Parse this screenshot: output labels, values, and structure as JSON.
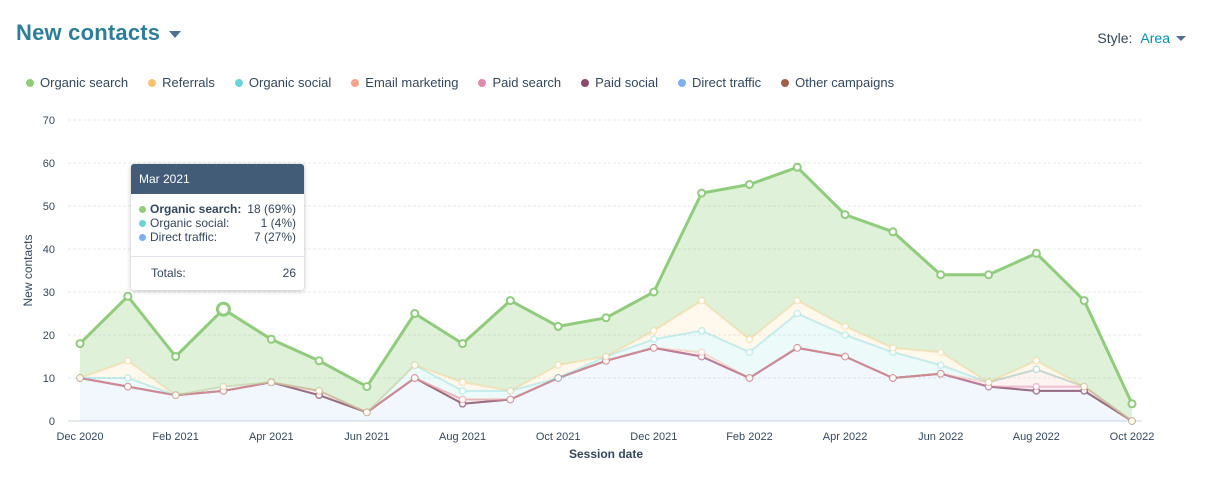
{
  "header": {
    "title": "New contacts",
    "style_label": "Style:",
    "style_value": "Area"
  },
  "colors": {
    "organic_search": "#8fcc7b",
    "referrals": "#f5c26b",
    "organic_social": "#6cd4d9",
    "email_marketing": "#f2a48a",
    "paid_search": "#e18ab0",
    "paid_social": "#8b4a6b",
    "direct_traffic": "#7eb0f0",
    "other_campaigns": "#a0614b"
  },
  "tooltip": {
    "title": "Mar 2021",
    "rows": [
      {
        "name": "Organic search:",
        "value": "18 (69%)",
        "color": "#8fcc7b",
        "bold": true
      },
      {
        "name": "Organic social:",
        "value": "1 (4%)",
        "color": "#6cd4d9",
        "bold": false
      },
      {
        "name": "Direct traffic:",
        "value": "7 (27%)",
        "color": "#7eb0f0",
        "bold": false
      }
    ],
    "totals_label": "Totals:",
    "totals_value": "26"
  },
  "chart_data": {
    "type": "area",
    "stacked": true,
    "title": "New contacts",
    "xlabel": "Session date",
    "ylabel": "New contacts",
    "ylim": [
      0,
      70
    ],
    "yticks": [
      0,
      10,
      20,
      30,
      40,
      50,
      60,
      70
    ],
    "grid": true,
    "legend": "top-left",
    "x": [
      "Dec 2020",
      "Jan 2021",
      "Feb 2021",
      "Mar 2021",
      "Apr 2021",
      "May 2021",
      "Jun 2021",
      "Jul 2021",
      "Aug 2021",
      "Sep 2021",
      "Oct 2021",
      "Nov 2021",
      "Dec 2021",
      "Jan 2022",
      "Feb 2022",
      "Mar 2022",
      "Apr 2022",
      "May 2022",
      "Jun 2022",
      "Jul 2022",
      "Aug 2022",
      "Sep 2022",
      "Oct 2022"
    ],
    "xtick_labels": [
      "Dec 2020",
      "Feb 2021",
      "Apr 2021",
      "Jun 2021",
      "Aug 2021",
      "Oct 2021",
      "Dec 2021",
      "Feb 2022",
      "Apr 2022",
      "Jun 2022",
      "Aug 2022",
      "Oct 2022"
    ],
    "series": [
      {
        "name": "Direct traffic",
        "key": "direct_traffic",
        "values": [
          10,
          8,
          6,
          7,
          9,
          6,
          2,
          10,
          4,
          5,
          10,
          14,
          17,
          15,
          10,
          17,
          15,
          10,
          11,
          8,
          7,
          7,
          0
        ]
      },
      {
        "name": "Other campaigns",
        "key": "other_campaigns",
        "values": [
          0,
          0,
          0,
          0,
          0,
          0,
          0,
          0,
          0,
          0,
          0,
          0,
          0,
          0,
          0,
          0,
          0,
          0,
          0,
          0,
          0,
          0,
          0
        ]
      },
      {
        "name": "Paid social",
        "key": "paid_social",
        "values": [
          0,
          0,
          0,
          0,
          0,
          0,
          0,
          0,
          0,
          0,
          0,
          0,
          0,
          0,
          0,
          0,
          0,
          0,
          0,
          0,
          0,
          0,
          0
        ]
      },
      {
        "name": "Paid search",
        "key": "paid_search",
        "values": [
          0,
          0,
          0,
          0,
          0,
          1,
          0,
          0,
          1,
          0,
          0,
          0,
          0,
          0,
          0,
          0,
          0,
          0,
          0,
          0,
          1,
          1,
          0
        ]
      },
      {
        "name": "Email marketing",
        "key": "email_marketing",
        "values": [
          0,
          0,
          0,
          0,
          0,
          0,
          0,
          0,
          0,
          0,
          0,
          0,
          0,
          1,
          0,
          0,
          0,
          0,
          0,
          1,
          4,
          0,
          0
        ]
      },
      {
        "name": "Organic social",
        "key": "organic_social",
        "values": [
          0,
          2,
          0,
          1,
          0,
          0,
          0,
          3,
          2,
          2,
          0,
          1,
          2,
          5,
          6,
          8,
          5,
          6,
          2,
          0,
          0,
          0,
          0
        ]
      },
      {
        "name": "Referrals",
        "key": "referrals",
        "values": [
          0,
          4,
          0,
          0,
          0,
          0,
          0,
          0,
          2,
          0,
          3,
          0,
          2,
          7,
          3,
          3,
          2,
          1,
          3,
          0,
          2,
          0,
          0
        ]
      },
      {
        "name": "Organic search",
        "key": "organic_search",
        "values": [
          8,
          15,
          9,
          18,
          10,
          7,
          6,
          12,
          9,
          21,
          9,
          9,
          9,
          25,
          36,
          31,
          26,
          27,
          18,
          25,
          25,
          20,
          4
        ]
      }
    ]
  },
  "legend_items": [
    {
      "label": "Organic search",
      "key": "organic_search"
    },
    {
      "label": "Referrals",
      "key": "referrals"
    },
    {
      "label": "Organic social",
      "key": "organic_social"
    },
    {
      "label": "Email marketing",
      "key": "email_marketing"
    },
    {
      "label": "Paid search",
      "key": "paid_search"
    },
    {
      "label": "Paid social",
      "key": "paid_social"
    },
    {
      "label": "Direct traffic",
      "key": "direct_traffic"
    },
    {
      "label": "Other campaigns",
      "key": "other_campaigns"
    }
  ]
}
